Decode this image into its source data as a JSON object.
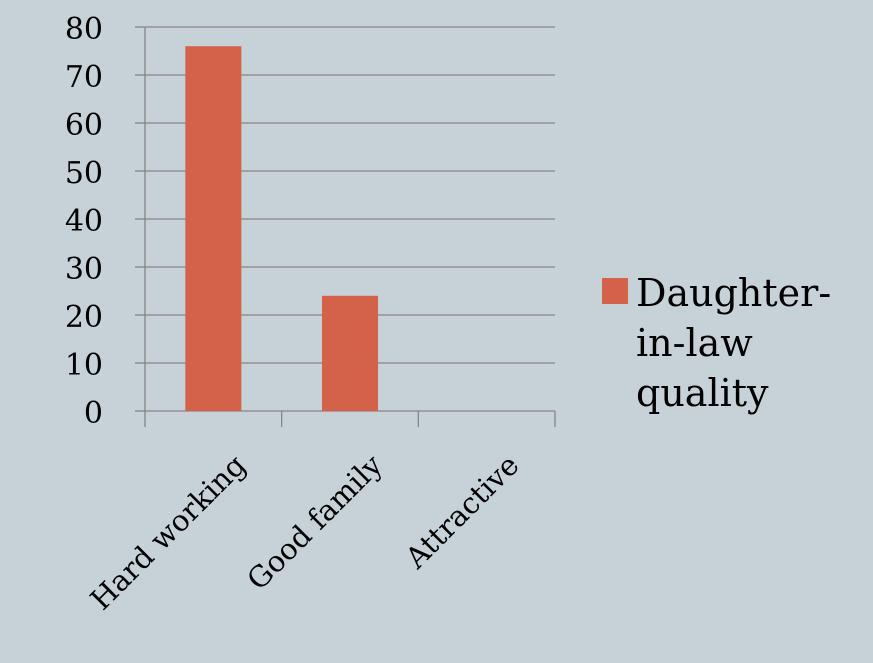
{
  "chart_data": {
    "type": "bar",
    "categories": [
      "Hard working",
      "Good family",
      "Attractive"
    ],
    "series": [
      {
        "name": "Daughter-in-law quality",
        "values": [
          76,
          24,
          0
        ],
        "color": "#d4614a"
      }
    ],
    "ylim": [
      0,
      80
    ],
    "yticks": [
      "0",
      "10",
      "20",
      "30",
      "40",
      "50",
      "60",
      "70",
      "80"
    ],
    "grid": true,
    "legend": "right",
    "title": "",
    "xlabel": "",
    "ylabel": ""
  },
  "legend": {
    "label": "Daughter-in-law quality"
  }
}
